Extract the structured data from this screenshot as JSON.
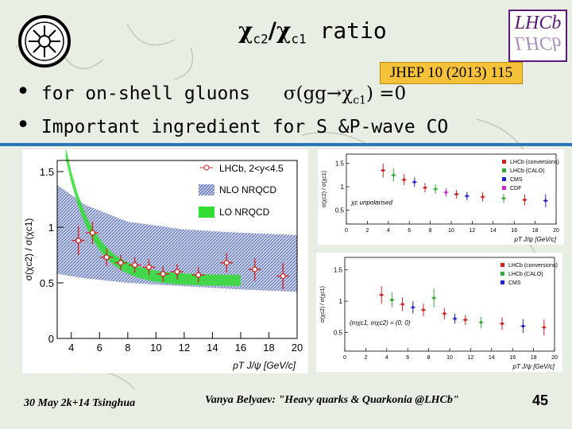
{
  "slide": {
    "title_main": "χ",
    "title_sub1": "c2",
    "title_slash": "/χ",
    "title_sub2": "c1",
    "title_word": " ratio",
    "reference": "JHEP 10 (2013) 115",
    "bullets": [
      {
        "text": "for on-shell gluons",
        "formula": "σ(gg→χ",
        "formula_sub": "c1",
        "formula_end": ") =0"
      },
      {
        "text": "Important ingredient for S &P-wave CO"
      }
    ],
    "footer_left": "30 May 2k+14 Tsinghua",
    "footer_center": "Vanya Belyaev: \"Heavy quarks & Quarkonia @LHCb\"",
    "page_number": "45",
    "logo_right": "LHCb",
    "colors": {
      "accent_band": "#2b78b8",
      "lo_band": "#33dd33",
      "data_red": "#cc2222",
      "ref_box": "#f5c23a"
    }
  },
  "chart_data": [
    {
      "type": "scatter",
      "title": "",
      "ylabel": "σ(χc2) / σ(χc1)",
      "xlabel": "pT J/ψ [GeV/c]",
      "xlim": [
        3,
        20
      ],
      "ylim": [
        0,
        1.6
      ],
      "x_ticks": [
        "4",
        "6",
        "8",
        "10",
        "12",
        "14",
        "16",
        "18",
        "20"
      ],
      "y_ticks": [
        "0",
        "0.5",
        "1",
        "1.5"
      ],
      "legend": [
        "LHCb, 2<y<4.5",
        "NLO NRQCD",
        "LO NRQCD"
      ],
      "series": [
        {
          "name": "LHCb, 2<y<4.5",
          "x": [
            4.5,
            5.5,
            6.5,
            7.5,
            8.5,
            9.5,
            10.5,
            11.5,
            13,
            15,
            17,
            19
          ],
          "y": [
            0.88,
            0.95,
            0.73,
            0.68,
            0.66,
            0.64,
            0.58,
            0.6,
            0.57,
            0.68,
            0.62,
            0.56
          ],
          "yerr": [
            0.13,
            0.1,
            0.08,
            0.07,
            0.07,
            0.07,
            0.07,
            0.07,
            0.07,
            0.09,
            0.1,
            0.12
          ]
        }
      ]
    },
    {
      "type": "scatter",
      "ylabel": "σ(χc2) / σ(χc1)",
      "xlabel": "pT J/ψ [GeV/c]",
      "annotation": "χc unpolarised",
      "y_ticks": [
        "0.5",
        "1",
        "1.5"
      ],
      "x_ticks": [
        "0",
        "2",
        "4",
        "6",
        "8",
        "10",
        "12",
        "14",
        "16",
        "18",
        "20"
      ],
      "legend": [
        "LHCb (conversions)",
        "LHCb (CALO)",
        "CMS",
        "CDF"
      ]
    },
    {
      "type": "scatter",
      "ylabel": "σ(χc2) / σ(χc1)",
      "xlabel": "pT J/ψ [GeV/c]",
      "annotation": "(mχc1, mχc2) = (0, 0)",
      "y_ticks": [
        "0.5",
        "1",
        "1.5"
      ],
      "x_ticks": [
        "0",
        "2",
        "4",
        "6",
        "8",
        "10",
        "12",
        "14",
        "16",
        "18",
        "20"
      ],
      "legend": [
        "LHCb (conversions)",
        "LHCb (CALO)",
        "CMS"
      ]
    }
  ]
}
